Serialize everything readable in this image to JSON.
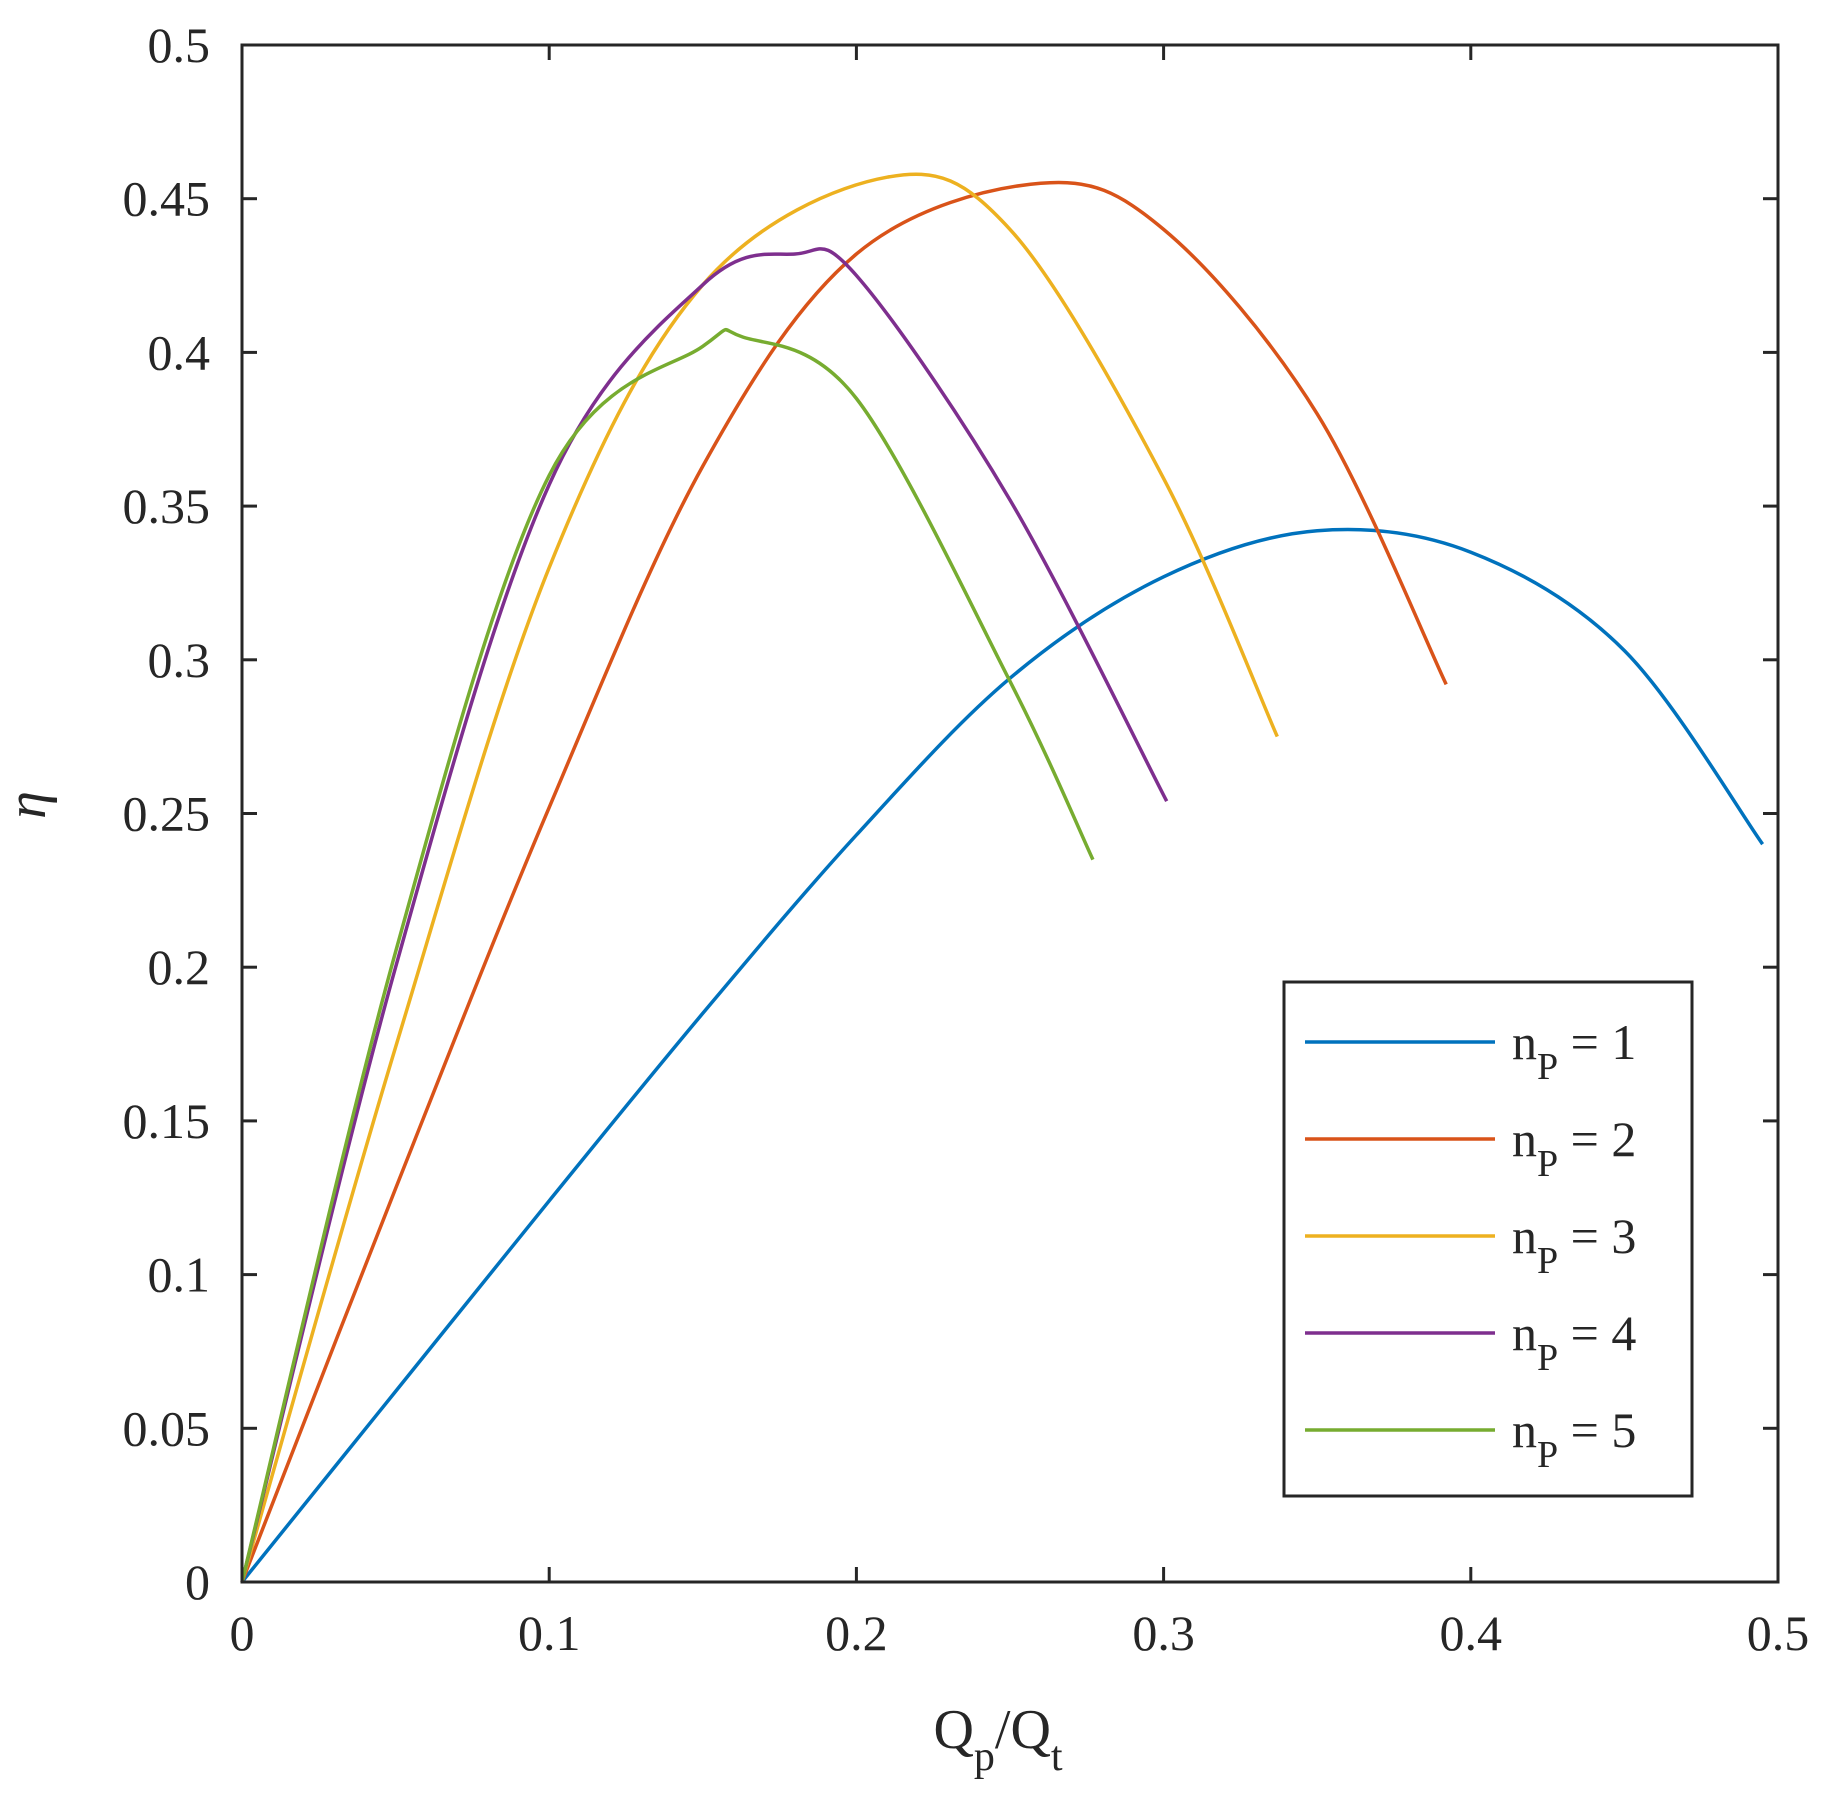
{
  "chart_data": {
    "type": "line",
    "xlabel_main": "Q",
    "xlabel_sub1": "p",
    "xlabel_mid": "/Q",
    "xlabel_sub2": "t",
    "ylabel": "η",
    "xlim": [
      0,
      0.5
    ],
    "ylim": [
      0,
      0.5
    ],
    "x_ticks": [
      "0",
      "0.1",
      "0.2",
      "0.3",
      "0.4",
      "0.5"
    ],
    "y_ticks": [
      "0",
      "0.05",
      "0.1",
      "0.15",
      "0.2",
      "0.25",
      "0.3",
      "0.35",
      "0.4",
      "0.45",
      "0.5"
    ],
    "grid": false,
    "legend_position": "bottom-right",
    "series": [
      {
        "label_base": "n",
        "label_sub": "P",
        "label_rest": " = 1",
        "color": "#0072BD",
        "x": [
          0,
          0.05,
          0.1,
          0.15,
          0.2,
          0.25,
          0.3,
          0.35,
          0.4,
          0.45,
          0.495
        ],
        "y": [
          0,
          0.062,
          0.124,
          0.185,
          0.243,
          0.294,
          0.327,
          0.342,
          0.335,
          0.303,
          0.24
        ]
      },
      {
        "label_base": "n",
        "label_sub": "P",
        "label_rest": " = 2",
        "color": "#D95319",
        "x": [
          0,
          0.05,
          0.1,
          0.15,
          0.2,
          0.26,
          0.3,
          0.35,
          0.392
        ],
        "y": [
          0,
          0.128,
          0.252,
          0.363,
          0.432,
          0.455,
          0.44,
          0.38,
          0.292
        ]
      },
      {
        "label_base": "n",
        "label_sub": "P",
        "label_rest": " = 3",
        "color": "#EDB120",
        "x": [
          0,
          0.05,
          0.1,
          0.15,
          0.21,
          0.25,
          0.3,
          0.337
        ],
        "y": [
          0,
          0.174,
          0.33,
          0.422,
          0.457,
          0.44,
          0.359,
          0.275
        ]
      },
      {
        "label_base": "n",
        "label_sub": "P",
        "label_rest": " = 4",
        "color": "#7E2F8E",
        "x": [
          0,
          0.05,
          0.1,
          0.15,
          0.18,
          0.2,
          0.25,
          0.301
        ],
        "y": [
          0,
          0.2,
          0.357,
          0.422,
          0.432,
          0.425,
          0.352,
          0.254
        ]
      },
      {
        "label_base": "n",
        "label_sub": "P",
        "label_rest": " = 5",
        "color": "#77AC30",
        "x": [
          0,
          0.05,
          0.1,
          0.15,
          0.163,
          0.2,
          0.25,
          0.277
        ],
        "y": [
          0,
          0.205,
          0.36,
          0.402,
          0.405,
          0.385,
          0.293,
          0.235
        ]
      }
    ]
  }
}
